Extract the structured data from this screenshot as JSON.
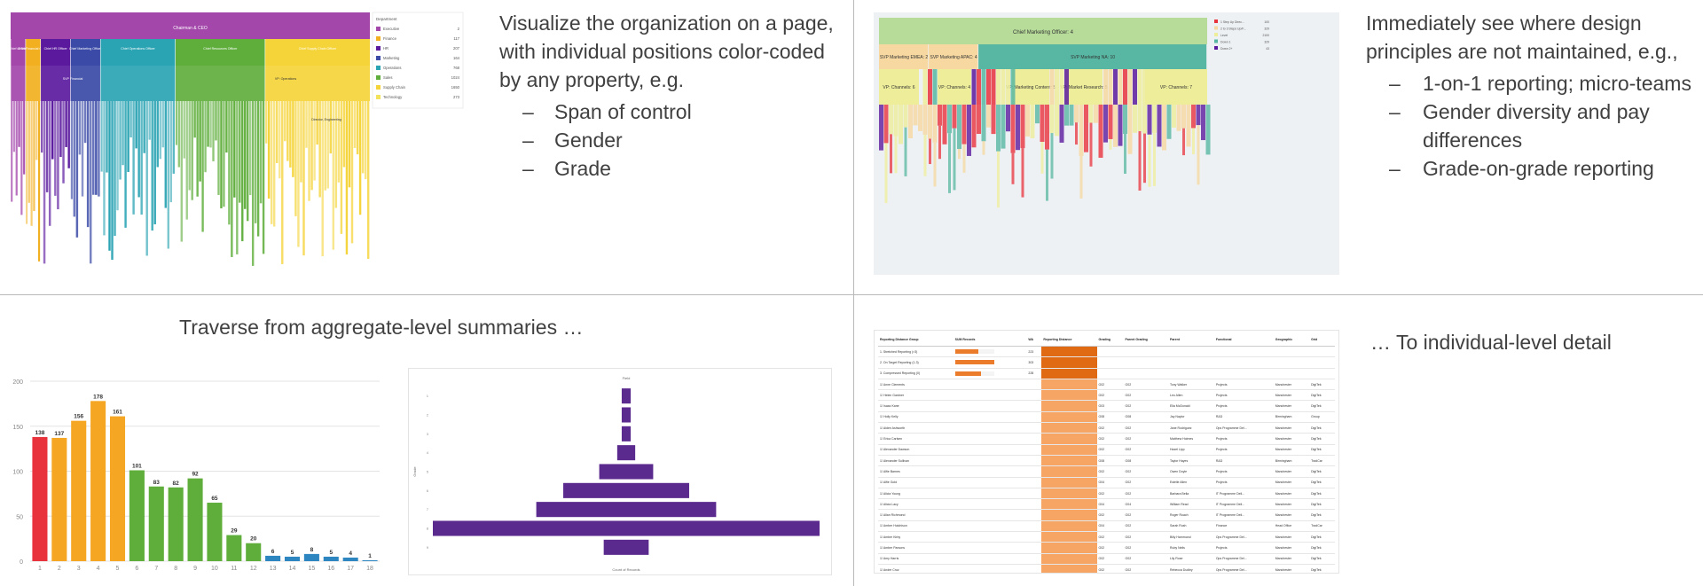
{
  "captions": {
    "top_left": {
      "text": "Visualize the organization on a page, with individual positions color-coded by any property, e.g.",
      "bullets": [
        "Span of control",
        "Gender",
        "Grade"
      ]
    },
    "top_right": {
      "text": "Immediately see where design principles are not maintained, e.g.,",
      "bullets": [
        "1-on-1 reporting; micro-teams",
        "Gender diversity and pay differences",
        "Grade-on-grade reporting"
      ]
    },
    "bottom_left": "Traverse from aggregate-level summaries …",
    "bottom_right": "… To individual-level detail"
  },
  "org_chart": {
    "root": "Chairman & CEO",
    "functions": [
      {
        "label": "Chief of Staff",
        "color": "#a347ab",
        "weight": 1
      },
      {
        "label": "Chief Financial Officer",
        "color": "#f2b020",
        "weight": 1
      },
      {
        "label": "Chief HR Officer",
        "color": "#5b1a9e",
        "weight": 2
      },
      {
        "label": "Chief Marketing Officer",
        "color": "#3a4aa6",
        "weight": 2
      },
      {
        "label": "Chief Operations Officer",
        "color": "#2aa3b3",
        "weight": 5
      },
      {
        "label": "Chief Resources Officer",
        "color": "#5fae3c",
        "weight": 6
      },
      {
        "label": "Chief Supply Chain Officer",
        "color": "#f5d43a",
        "weight": 7
      }
    ],
    "sub_labels": [
      "SVP Financial",
      "VP: Operations",
      "Director, Engineering"
    ],
    "legend_title": "Department",
    "legend": [
      {
        "name": "Executive",
        "count": "2",
        "color": "#a347ab"
      },
      {
        "name": "Finance",
        "count": "117",
        "color": "#f2b020"
      },
      {
        "name": "HR",
        "count": "207",
        "color": "#5b1a9e"
      },
      {
        "name": "Marketing",
        "count": "164",
        "color": "#3a4aa6"
      },
      {
        "name": "Operations",
        "count": "768",
        "color": "#2aa3b3"
      },
      {
        "name": "Sales",
        "count": "1024",
        "color": "#5fae3c"
      },
      {
        "name": "Supply Chain",
        "count": "1650",
        "color": "#f5d43a"
      },
      {
        "name": "Technology",
        "count": "273",
        "color": "#f2e25c"
      }
    ]
  },
  "marketing_chart": {
    "root": "Chief Marketing Officer: 4",
    "level2": [
      {
        "label": "SVP Marketing EMEA: 2",
        "color": "#f6d8a0",
        "weight": 1
      },
      {
        "label": "SVP Marketing APAC: 4",
        "color": "#f6d8a0",
        "weight": 1
      },
      {
        "label": "SVP Marketing NA: 10",
        "color": "#57b7a2",
        "weight": 4.6
      }
    ],
    "level3": [
      {
        "label": "VP: Channels: 6",
        "color": "#eded9a"
      },
      {
        "label": "VP: Channels: 4",
        "color": "#eded9a"
      },
      {
        "label": "VP: Marketing Content: 5",
        "color": "#eded9a"
      },
      {
        "label": "VP: Market Research: 5",
        "color": "#eded9a"
      },
      {
        "label": "VP: Channels: 7",
        "color": "#eded9a"
      }
    ],
    "legend": [
      {
        "name": "1 Step Up Direc...",
        "count": "100",
        "color": "#e8323c"
      },
      {
        "name": "2 to 3 Steps Up/F...",
        "count": "329",
        "color": "#f6d8a0"
      },
      {
        "name": "Level",
        "count": "2100",
        "color": "#eded9a"
      },
      {
        "name": "Down 1",
        "count": "329",
        "color": "#57b7a2"
      },
      {
        "name": "Down 2+",
        "count": "43",
        "color": "#5b1a9e"
      }
    ]
  },
  "chart_data": [
    {
      "type": "bar",
      "categories": [
        "1",
        "2",
        "3",
        "4",
        "5",
        "6",
        "7",
        "8",
        "9",
        "10",
        "11",
        "12",
        "13",
        "14",
        "15",
        "16",
        "17",
        "18"
      ],
      "values": [
        138,
        137,
        156,
        178,
        161,
        101,
        83,
        82,
        92,
        65,
        29,
        20,
        6,
        5,
        8,
        5,
        4,
        1
      ],
      "bar_colors": [
        "#e8323c",
        "#f5a623",
        "#f5a623",
        "#f5a623",
        "#f5a623",
        "#5fae3c",
        "#5fae3c",
        "#5fae3c",
        "#5fae3c",
        "#5fae3c",
        "#5fae3c",
        "#5fae3c",
        "#2e86c1",
        "#2e86c1",
        "#2e86c1",
        "#2e86c1",
        "#2e86c1",
        "#2e86c1"
      ],
      "yticks": [
        0,
        50,
        100,
        150,
        200
      ],
      "ylim": [
        0,
        200
      ],
      "grid": true
    },
    {
      "type": "bar",
      "orientation": "horizontal",
      "title": "Field",
      "xlabel": "Count of Records",
      "ylabel": "Grade",
      "categories": [
        "1",
        "2",
        "3",
        "4",
        "5",
        "6",
        "7",
        "8",
        "9"
      ],
      "values": [
        1,
        1,
        1,
        2,
        6,
        14,
        20,
        43,
        5
      ],
      "color": "#5b2a8e"
    }
  ],
  "detail_table": {
    "columns": [
      "Reporting Distance Group",
      "SUM Records",
      "WA",
      "Reporting Distance",
      "Grading",
      "Parent Grading",
      "Parent",
      "Functional",
      "Geographic",
      "Grid"
    ],
    "groups": [
      {
        "label": "1. Stretched Reporting (>3)",
        "bar": 0.6,
        "count": "223"
      },
      {
        "label": "2. On Target Reporting (1-3)",
        "bar": 1.0,
        "count": "303"
      },
      {
        "label": "3. Compressed Reporting (0)",
        "bar": 0.65,
        "count": "228"
      }
    ],
    "rows": [
      [
        "Anne Clements",
        "G02",
        "G02",
        "Tony Walker",
        "Projects",
        "Manchester",
        "DigiTek"
      ],
      [
        "Helen Gardner",
        "G02",
        "G02",
        "Leo Allen",
        "Projects",
        "Manchester",
        "DigiTek"
      ],
      [
        "Isaac Kane",
        "G03",
        "G02",
        "Ella McDonald",
        "Projects",
        "Manchester",
        "DigiTek"
      ],
      [
        "Holly Kelly",
        "G08",
        "G08",
        "Jay Naylor",
        "R&D",
        "Birmingham",
        "Group"
      ],
      [
        "Aiden Ashworth",
        "G02",
        "G02",
        "Jane Rodriguez",
        "Ops Programme Del...",
        "Manchester",
        "DigiTek"
      ],
      [
        "Erica Carlsen",
        "G02",
        "G02",
        "Matthew Holmes",
        "Projects",
        "Manchester",
        "DigiTek"
      ],
      [
        "Alexander Dawson",
        "G02",
        "G02",
        "Hazel Lipp",
        "Projects",
        "Manchester",
        "DigiTek"
      ],
      [
        "Alexander Sullivan",
        "G08",
        "G08",
        "Taylor Hayes",
        "R&D",
        "Birmingham",
        "TradCar"
      ],
      [
        "Alfie Barnes",
        "G02",
        "G02",
        "Owen Doyle",
        "Projects",
        "Manchester",
        "DigiTek"
      ],
      [
        "Alfie Gold",
        "G04",
        "G02",
        "Estelle Allen",
        "Projects",
        "Manchester",
        "DigiTek"
      ],
      [
        "Alicia Young",
        "G02",
        "G02",
        "Barbara Bella",
        "IT Programme Deli...",
        "Manchester",
        "DigiTek"
      ],
      [
        "Alicia Lacy",
        "G04",
        "G04",
        "William Read",
        "IT Programme Deli...",
        "Manchester",
        "DigiTek"
      ],
      [
        "Allan Richmond",
        "G02",
        "G02",
        "Roger Roach",
        "IT Programme Deli...",
        "Manchester",
        "DigiTek"
      ],
      [
        "Amber Hutchison",
        "G04",
        "G02",
        "Sarah Rush",
        "Finance",
        "Head Office",
        "TradCar"
      ],
      [
        "Amber Kirby",
        "G02",
        "G02",
        "Billy Hammond",
        "Ops Programme Del...",
        "Manchester",
        "DigiTek"
      ],
      [
        "Amber Parsons",
        "G02",
        "G02",
        "Ruby Nelis",
        "Projects",
        "Manchester",
        "DigiTek"
      ],
      [
        "Amy Harris",
        "G02",
        "G02",
        "Lily Rose",
        "Ops Programme Del...",
        "Manchester",
        "DigiTek"
      ],
      [
        "Andre Cruz",
        "G02",
        "G02",
        "Rebecca Dudley",
        "Ops Programme Del...",
        "Manchester",
        "DigiTek"
      ],
      [
        "Andrew Garner",
        "G02",
        "G02",
        "Harmon Nicolas",
        "Project Delivery",
        "Manchester",
        "DigiTek"
      ]
    ]
  }
}
